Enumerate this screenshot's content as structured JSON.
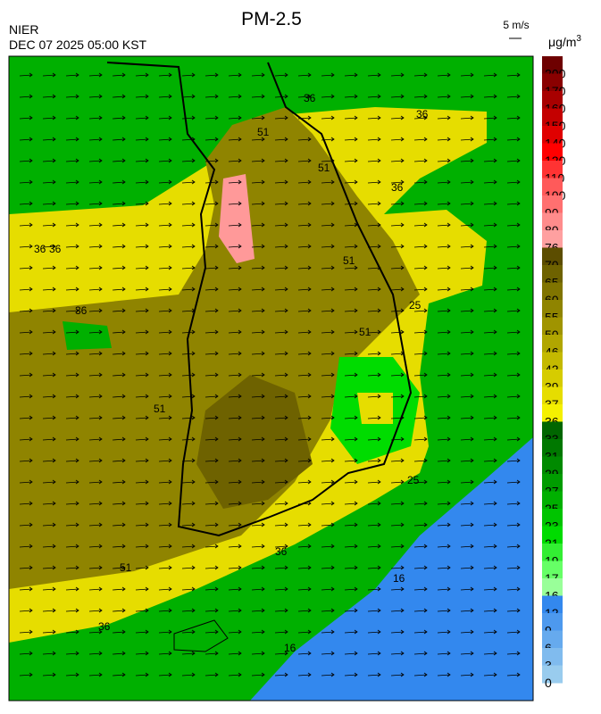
{
  "header": {
    "title": "PM-2.5",
    "agency": "NIER",
    "datetime": "DEC 07 2025 05:00 KST",
    "wind_scale": "5 m/s"
  },
  "legend": {
    "unit": "μg/m",
    "unit_exp": "3",
    "items": [
      {
        "label": 200,
        "color": "#6e0000"
      },
      {
        "label": 170,
        "color": "#8a0000"
      },
      {
        "label": 160,
        "color": "#a80000"
      },
      {
        "label": 150,
        "color": "#c40000"
      },
      {
        "label": 140,
        "color": "#e00000"
      },
      {
        "label": 120,
        "color": "#ff0000"
      },
      {
        "label": 110,
        "color": "#ff3333"
      },
      {
        "label": 100,
        "color": "#ff5a5a"
      },
      {
        "label": 90,
        "color": "#ff7070"
      },
      {
        "label": 80,
        "color": "#ff8c8c"
      },
      {
        "label": 76,
        "color": "#ffa0a0"
      },
      {
        "label": 70,
        "color": "#5c4d00"
      },
      {
        "label": 65,
        "color": "#6e6200"
      },
      {
        "label": 60,
        "color": "#807400"
      },
      {
        "label": 55,
        "color": "#8f8400"
      },
      {
        "label": 50,
        "color": "#a09400"
      },
      {
        "label": 46,
        "color": "#b1a600"
      },
      {
        "label": 42,
        "color": "#c4b900"
      },
      {
        "label": 39,
        "color": "#d6cc00"
      },
      {
        "label": 37,
        "color": "#e6dd00"
      },
      {
        "label": 36,
        "color": "#f5f000"
      },
      {
        "label": 33,
        "color": "#006600"
      },
      {
        "label": 31,
        "color": "#007800"
      },
      {
        "label": 29,
        "color": "#008a00"
      },
      {
        "label": 27,
        "color": "#009c00"
      },
      {
        "label": 25,
        "color": "#00b000"
      },
      {
        "label": 23,
        "color": "#00c400"
      },
      {
        "label": 21,
        "color": "#00dc00"
      },
      {
        "label": 19,
        "color": "#33ee33"
      },
      {
        "label": 17,
        "color": "#66ff66"
      },
      {
        "label": 16,
        "color": "#99ff99"
      },
      {
        "label": 12,
        "color": "#3388ee"
      },
      {
        "label": 9,
        "color": "#4d99ee"
      },
      {
        "label": 6,
        "color": "#66aaee"
      },
      {
        "label": 3,
        "color": "#80bbee"
      },
      {
        "label": 0,
        "color": "#99ccee"
      }
    ]
  },
  "contour_labels": [
    "36",
    "51",
    "36",
    "36",
    "36",
    "36",
    "51",
    "51",
    "51",
    "36",
    "25",
    "51",
    "16",
    "36",
    "51",
    "36",
    "25",
    "16"
  ]
}
